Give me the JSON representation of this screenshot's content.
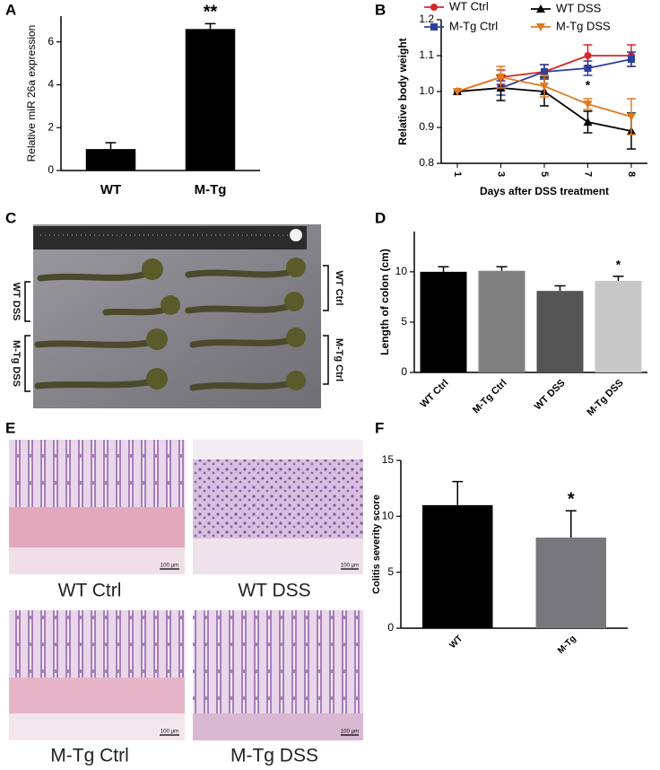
{
  "panel_labels": [
    "A",
    "B",
    "C",
    "D",
    "E",
    "F"
  ],
  "chart_data": [
    {
      "type": "bar",
      "ylabel": "Relative miR 26a expression",
      "categories": [
        "WT",
        "M-Tg"
      ],
      "values": [
        1,
        6.6
      ],
      "errors": [
        0.3,
        0.25
      ],
      "annotations": [
        null,
        "**"
      ],
      "colors": [
        "#000000",
        "#000000"
      ],
      "ylim": [
        0,
        7.2
      ],
      "yticks": [
        0,
        2,
        4,
        6
      ],
      "grid": false
    },
    {
      "type": "line",
      "ylabel": "Relative body weight",
      "xlabel": "Days after DSS treatment",
      "categories": [
        "1",
        "3",
        "5",
        "7",
        "8"
      ],
      "ylim": [
        0.8,
        1.2
      ],
      "yticks": [
        0.8,
        0.9,
        {
          "value": 1,
          "label": "1.0"
        },
        1.1,
        1.2
      ],
      "grid": false,
      "series": [
        {
          "name": "WT Ctrl",
          "color": "#d62728",
          "values": [
            1.0,
            1.04,
            1.055,
            1.1,
            1.1
          ],
          "errors": [
            0,
            0.02,
            0.02,
            0.03,
            0.03
          ],
          "annotations": [
            null,
            null,
            null,
            null,
            null
          ]
        },
        {
          "name": "M-Tg Ctrl",
          "color": "#2e3f9a",
          "values": [
            1.0,
            1.01,
            1.055,
            1.065,
            1.09
          ],
          "errors": [
            0,
            0.02,
            0.02,
            0.02,
            0.02
          ],
          "annotations": [
            null,
            null,
            null,
            null,
            null
          ]
        },
        {
          "name": "WT DSS",
          "color": "#000000",
          "values": [
            1.0,
            1.01,
            1.0,
            0.915,
            0.89
          ],
          "errors": [
            0,
            0.035,
            0.04,
            0.03,
            0.05
          ],
          "annotations": [
            null,
            null,
            null,
            null,
            null
          ]
        },
        {
          "name": "M-Tg DSS",
          "color": "#e07b20",
          "values": [
            1.0,
            1.04,
            1.015,
            0.965,
            0.93
          ],
          "errors": [
            0,
            0.03,
            0.03,
            0.015,
            0.05
          ],
          "annotations": [
            null,
            null,
            null,
            "*",
            null
          ]
        }
      ]
    },
    {
      "type": "bar",
      "ylabel": "Length of colon (cm)",
      "categories": [
        "WT Ctrl",
        "M-Tg Ctrl",
        "WT DSS",
        "M-Tg DSS"
      ],
      "values": [
        10,
        10.1,
        8.1,
        9.1
      ],
      "errors": [
        0.5,
        0.4,
        0.5,
        0.45
      ],
      "annotations": [
        null,
        null,
        null,
        "*"
      ],
      "colors": [
        "#000000",
        "#808080",
        "#555555",
        "#c8c8c8"
      ],
      "ylim": [
        0,
        14
      ],
      "yticks": [
        0,
        5,
        10
      ],
      "grid": false
    },
    {
      "type": "bar",
      "ylabel": "Colitis severity score",
      "categories": [
        "WT",
        "M-Tg"
      ],
      "values": [
        11,
        8.1
      ],
      "errors": [
        2.1,
        2.4
      ],
      "annotations": [
        null,
        "*"
      ],
      "colors": [
        "#000000",
        "#77777c"
      ],
      "ylim": [
        0,
        15
      ],
      "yticks": [
        0,
        5,
        10,
        15
      ],
      "grid": false
    }
  ],
  "photo_c": {
    "labels": [
      "WT DSS",
      "M-Tg DSS",
      "WT Ctrl",
      "M-Tg Ctrl"
    ]
  },
  "photo_e": {
    "captions": [
      "WT Ctrl",
      "WT DSS",
      "M-Tg Ctrl",
      "M-Tg DSS"
    ],
    "scale_bars": [
      "100 µm",
      "100 µm",
      "100 µm",
      "100 µm"
    ]
  }
}
